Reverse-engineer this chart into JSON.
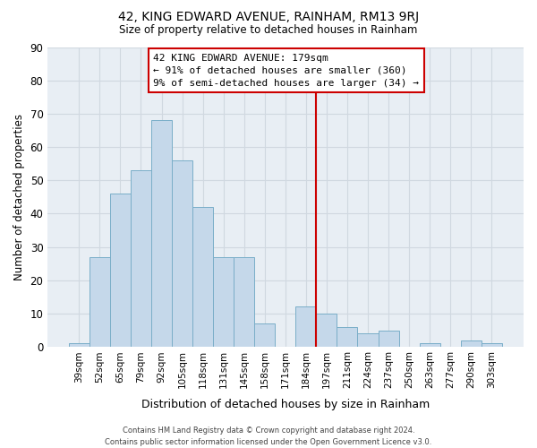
{
  "title": "42, KING EDWARD AVENUE, RAINHAM, RM13 9RJ",
  "subtitle": "Size of property relative to detached houses in Rainham",
  "xlabel": "Distribution of detached houses by size in Rainham",
  "ylabel": "Number of detached properties",
  "bar_labels": [
    "39sqm",
    "52sqm",
    "65sqm",
    "79sqm",
    "92sqm",
    "105sqm",
    "118sqm",
    "131sqm",
    "145sqm",
    "158sqm",
    "171sqm",
    "184sqm",
    "197sqm",
    "211sqm",
    "224sqm",
    "237sqm",
    "250sqm",
    "263sqm",
    "277sqm",
    "290sqm",
    "303sqm"
  ],
  "bar_heights": [
    1,
    27,
    46,
    53,
    68,
    56,
    42,
    27,
    27,
    7,
    0,
    12,
    10,
    6,
    4,
    5,
    0,
    1,
    0,
    2,
    1
  ],
  "bar_color": "#c5d8ea",
  "bar_edge_color": "#7aaec8",
  "grid_color": "#d0d8e0",
  "vline_x": 11.5,
  "vline_color": "#cc0000",
  "annotation_line1": "42 KING EDWARD AVENUE: 179sqm",
  "annotation_line2": "← 91% of detached houses are smaller (360)",
  "annotation_line3": "9% of semi-detached houses are larger (34) →",
  "annotation_box_color": "#ffffff",
  "annotation_box_edge": "#cc0000",
  "ylim": [
    0,
    90
  ],
  "yticks": [
    0,
    10,
    20,
    30,
    40,
    50,
    60,
    70,
    80,
    90
  ],
  "footnote": "Contains HM Land Registry data © Crown copyright and database right 2024.\nContains public sector information licensed under the Open Government Licence v3.0.",
  "bg_color": "#ffffff",
  "plot_bg_color": "#e8eef4"
}
